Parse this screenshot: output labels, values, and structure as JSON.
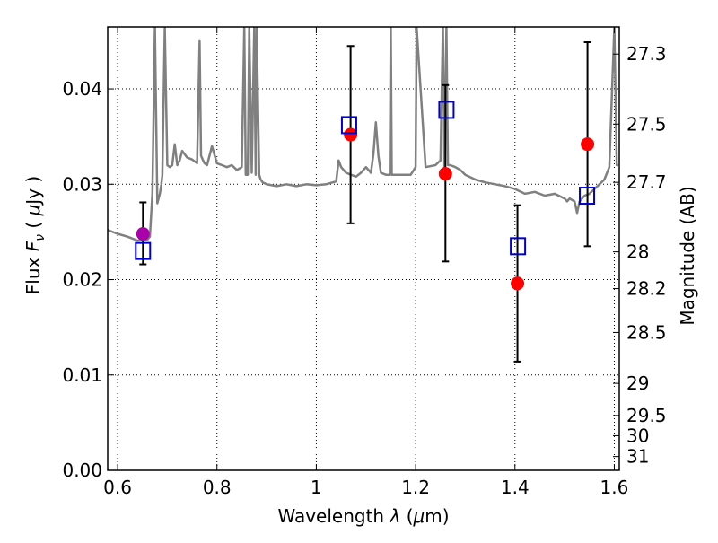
{
  "chart_data": {
    "type": "scatter",
    "title": "",
    "xlabel_text": "Wavelength",
    "xlabel_sym": "λ",
    "xlabel_unit_open": "(",
    "xlabel_unit_mu": "μ",
    "xlabel_unit_rest": "m)",
    "ylabel_text": "Flux",
    "ylabel_sym": "F",
    "ylabel_sub": "ν",
    "ylabel_unit_open": "(",
    "ylabel_unit_mu": "μ",
    "ylabel_unit_rest": "Jy )",
    "y2label": "Magnitude (AB)",
    "xlim": [
      0.58,
      1.61
    ],
    "ylim": [
      0.0,
      0.0465
    ],
    "x_ticks": [
      0.6,
      0.8,
      1.0,
      1.2,
      1.4,
      1.6
    ],
    "x_tick_labels": [
      "0.6",
      "0.8",
      "1",
      "1.2",
      "1.4",
      "1.6"
    ],
    "y_ticks": [
      0.0,
      0.01,
      0.02,
      0.03,
      0.04
    ],
    "y_tick_labels": [
      "0.00",
      "0.01",
      "0.02",
      "0.03",
      "0.04"
    ],
    "mag_ticks": [
      27.3,
      27.5,
      27.7,
      28,
      28.2,
      28.5,
      29,
      29.5,
      30,
      31
    ],
    "mag_tick_labels": [
      "27.3",
      "27.5",
      "27.7",
      "28",
      "28.2",
      "28.5",
      "29",
      "29.5",
      "30",
      "31"
    ],
    "grid": true,
    "colors": {
      "model": "#808080",
      "observed": "#ff0000",
      "observed_first": "#aa00aa",
      "synthetic": "#0000cc",
      "errorbar": "#000000"
    },
    "series": [
      {
        "kind": "line",
        "x": [
          0.58,
          0.6,
          0.62,
          0.64,
          0.66,
          0.665,
          0.67,
          0.675,
          0.68,
          0.685,
          0.688,
          0.69,
          0.695,
          0.7,
          0.705,
          0.71,
          0.715,
          0.72,
          0.725,
          0.73,
          0.74,
          0.75,
          0.76,
          0.765,
          0.768,
          0.772,
          0.775,
          0.78,
          0.79,
          0.8,
          0.81,
          0.82,
          0.83,
          0.84,
          0.85,
          0.855,
          0.858,
          0.862,
          0.865,
          0.87,
          0.875,
          0.878,
          0.88,
          0.885,
          0.888,
          0.892,
          0.9,
          0.92,
          0.94,
          0.96,
          0.98,
          1.0,
          1.02,
          1.04,
          1.045,
          1.05,
          1.06,
          1.07,
          1.08,
          1.09,
          1.1,
          1.11,
          1.115,
          1.12,
          1.125,
          1.13,
          1.14,
          1.148,
          1.15,
          1.152,
          1.16,
          1.17,
          1.18,
          1.19,
          1.2,
          1.202,
          1.22,
          1.24,
          1.25,
          1.255,
          1.258,
          1.262,
          1.265,
          1.27,
          1.28,
          1.29,
          1.3,
          1.32,
          1.34,
          1.36,
          1.38,
          1.4,
          1.42,
          1.44,
          1.46,
          1.48,
          1.5,
          1.505,
          1.51,
          1.52,
          1.525,
          1.53,
          1.54,
          1.55,
          1.56,
          1.57,
          1.58,
          1.59,
          1.6,
          1.605,
          1.608
        ],
        "y": [
          0.0252,
          0.0248,
          0.0245,
          0.0241,
          0.0242,
          0.0245,
          0.029,
          0.0465,
          0.028,
          0.029,
          0.03,
          0.031,
          0.0465,
          0.032,
          0.0318,
          0.032,
          0.0342,
          0.032,
          0.0325,
          0.0335,
          0.0328,
          0.0326,
          0.0322,
          0.045,
          0.033,
          0.0325,
          0.0322,
          0.032,
          0.034,
          0.0322,
          0.032,
          0.0318,
          0.032,
          0.0315,
          0.0318,
          0.0465,
          0.031,
          0.031,
          0.0465,
          0.0312,
          0.0465,
          0.031,
          0.0465,
          0.031,
          0.0305,
          0.0302,
          0.03,
          0.0298,
          0.03,
          0.0298,
          0.03,
          0.0299,
          0.03,
          0.0303,
          0.0325,
          0.0318,
          0.0312,
          0.031,
          0.0308,
          0.0312,
          0.0318,
          0.0312,
          0.0332,
          0.0365,
          0.033,
          0.0312,
          0.031,
          0.031,
          0.0465,
          0.031,
          0.031,
          0.031,
          0.031,
          0.031,
          0.0318,
          0.0465,
          0.0318,
          0.032,
          0.0325,
          0.0465,
          0.0315,
          0.0465,
          0.032,
          0.032,
          0.0318,
          0.0315,
          0.031,
          0.0305,
          0.0302,
          0.03,
          0.0298,
          0.0295,
          0.029,
          0.0292,
          0.0288,
          0.029,
          0.0285,
          0.0282,
          0.0285,
          0.0282,
          0.027,
          0.0282,
          0.0288,
          0.029,
          0.0295,
          0.03,
          0.0305,
          0.0318,
          0.0465,
          0.032,
          0.032
        ]
      },
      {
        "kind": "errorbar",
        "x": [
          0.651,
          1.069,
          1.26,
          1.405,
          1.546
        ],
        "y": [
          0.0248,
          0.0352,
          0.0311,
          0.0196,
          0.0342
        ],
        "yerr_low": [
          0.0032,
          0.0093,
          0.0092,
          0.0082,
          0.0107
        ],
        "yerr_high": [
          0.0033,
          0.0093,
          0.0093,
          0.0082,
          0.0107
        ]
      },
      {
        "kind": "square",
        "x": [
          0.651,
          1.066,
          1.262,
          1.406,
          1.545
        ],
        "y": [
          0.023,
          0.0362,
          0.0378,
          0.0235,
          0.0288
        ]
      }
    ]
  }
}
